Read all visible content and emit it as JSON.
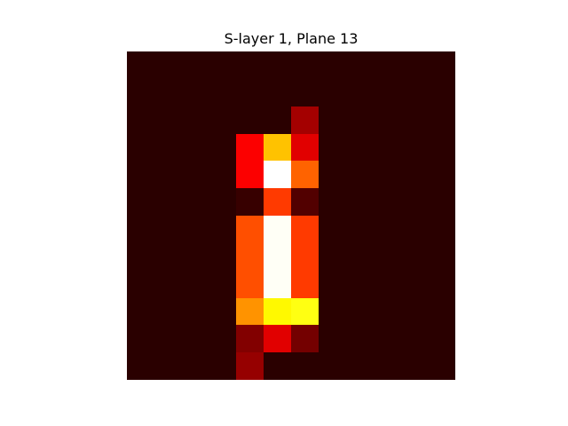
{
  "chart_data": {
    "type": "heatmap",
    "title": "S-layer 1, Plane 13",
    "colormap": "hot",
    "rows": 12,
    "cols": 12,
    "xlabel": "",
    "ylabel": "",
    "axes_visible": false,
    "grid": false,
    "legend": "none",
    "values": [
      [
        0.02,
        0.02,
        0.02,
        0.02,
        0.02,
        0.02,
        0.02,
        0.02,
        0.02,
        0.02,
        0.02,
        0.02
      ],
      [
        0.02,
        0.02,
        0.02,
        0.02,
        0.02,
        0.02,
        0.02,
        0.02,
        0.02,
        0.02,
        0.02,
        0.02
      ],
      [
        0.02,
        0.02,
        0.02,
        0.02,
        0.02,
        0.02,
        0.2,
        0.02,
        0.02,
        0.02,
        0.02,
        0.02
      ],
      [
        0.02,
        0.02,
        0.02,
        0.02,
        0.33,
        0.62,
        0.29,
        0.02,
        0.02,
        0.02,
        0.02,
        0.02
      ],
      [
        0.02,
        0.02,
        0.02,
        0.02,
        0.33,
        1.0,
        0.48,
        0.02,
        0.02,
        0.02,
        0.02,
        0.02
      ],
      [
        0.02,
        0.02,
        0.02,
        0.02,
        0.04,
        0.42,
        0.08,
        0.02,
        0.02,
        0.02,
        0.02,
        0.02
      ],
      [
        0.02,
        0.02,
        0.02,
        0.02,
        0.45,
        0.99,
        0.42,
        0.02,
        0.02,
        0.02,
        0.02,
        0.02
      ],
      [
        0.02,
        0.02,
        0.02,
        0.02,
        0.45,
        0.99,
        0.42,
        0.02,
        0.02,
        0.02,
        0.02,
        0.02
      ],
      [
        0.02,
        0.02,
        0.02,
        0.02,
        0.45,
        0.99,
        0.42,
        0.02,
        0.02,
        0.02,
        0.02,
        0.02
      ],
      [
        0.02,
        0.02,
        0.02,
        0.02,
        0.55,
        0.7,
        0.73,
        0.02,
        0.02,
        0.02,
        0.02,
        0.02
      ],
      [
        0.02,
        0.02,
        0.02,
        0.02,
        0.15,
        0.29,
        0.13,
        0.02,
        0.02,
        0.02,
        0.02,
        0.02
      ],
      [
        0.02,
        0.02,
        0.02,
        0.02,
        0.18,
        0.02,
        0.02,
        0.02,
        0.02,
        0.02,
        0.02,
        0.02
      ]
    ]
  }
}
